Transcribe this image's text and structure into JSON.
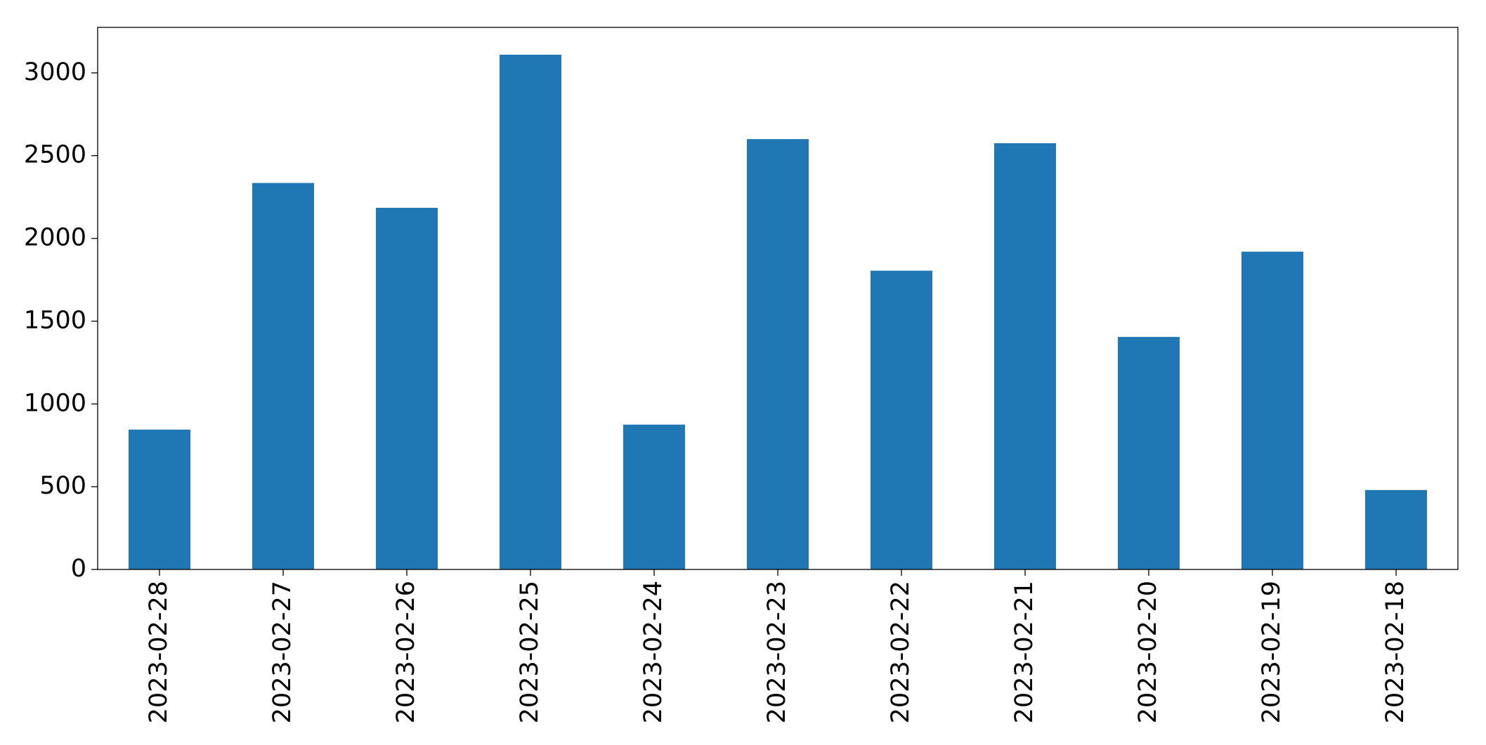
{
  "chart_data": {
    "type": "bar",
    "categories": [
      "2023-02-28",
      "2023-02-27",
      "2023-02-26",
      "2023-02-25",
      "2023-02-24",
      "2023-02-23",
      "2023-02-22",
      "2023-02-21",
      "2023-02-20",
      "2023-02-19",
      "2023-02-18"
    ],
    "values": [
      845,
      2335,
      2185,
      3110,
      875,
      2600,
      1805,
      2575,
      1405,
      1920,
      480
    ],
    "color": "#1f77b4",
    "ylim": [
      0,
      3275
    ],
    "yticks": [
      0,
      500,
      1000,
      1500,
      2000,
      2500,
      3000
    ],
    "grid": false
  }
}
